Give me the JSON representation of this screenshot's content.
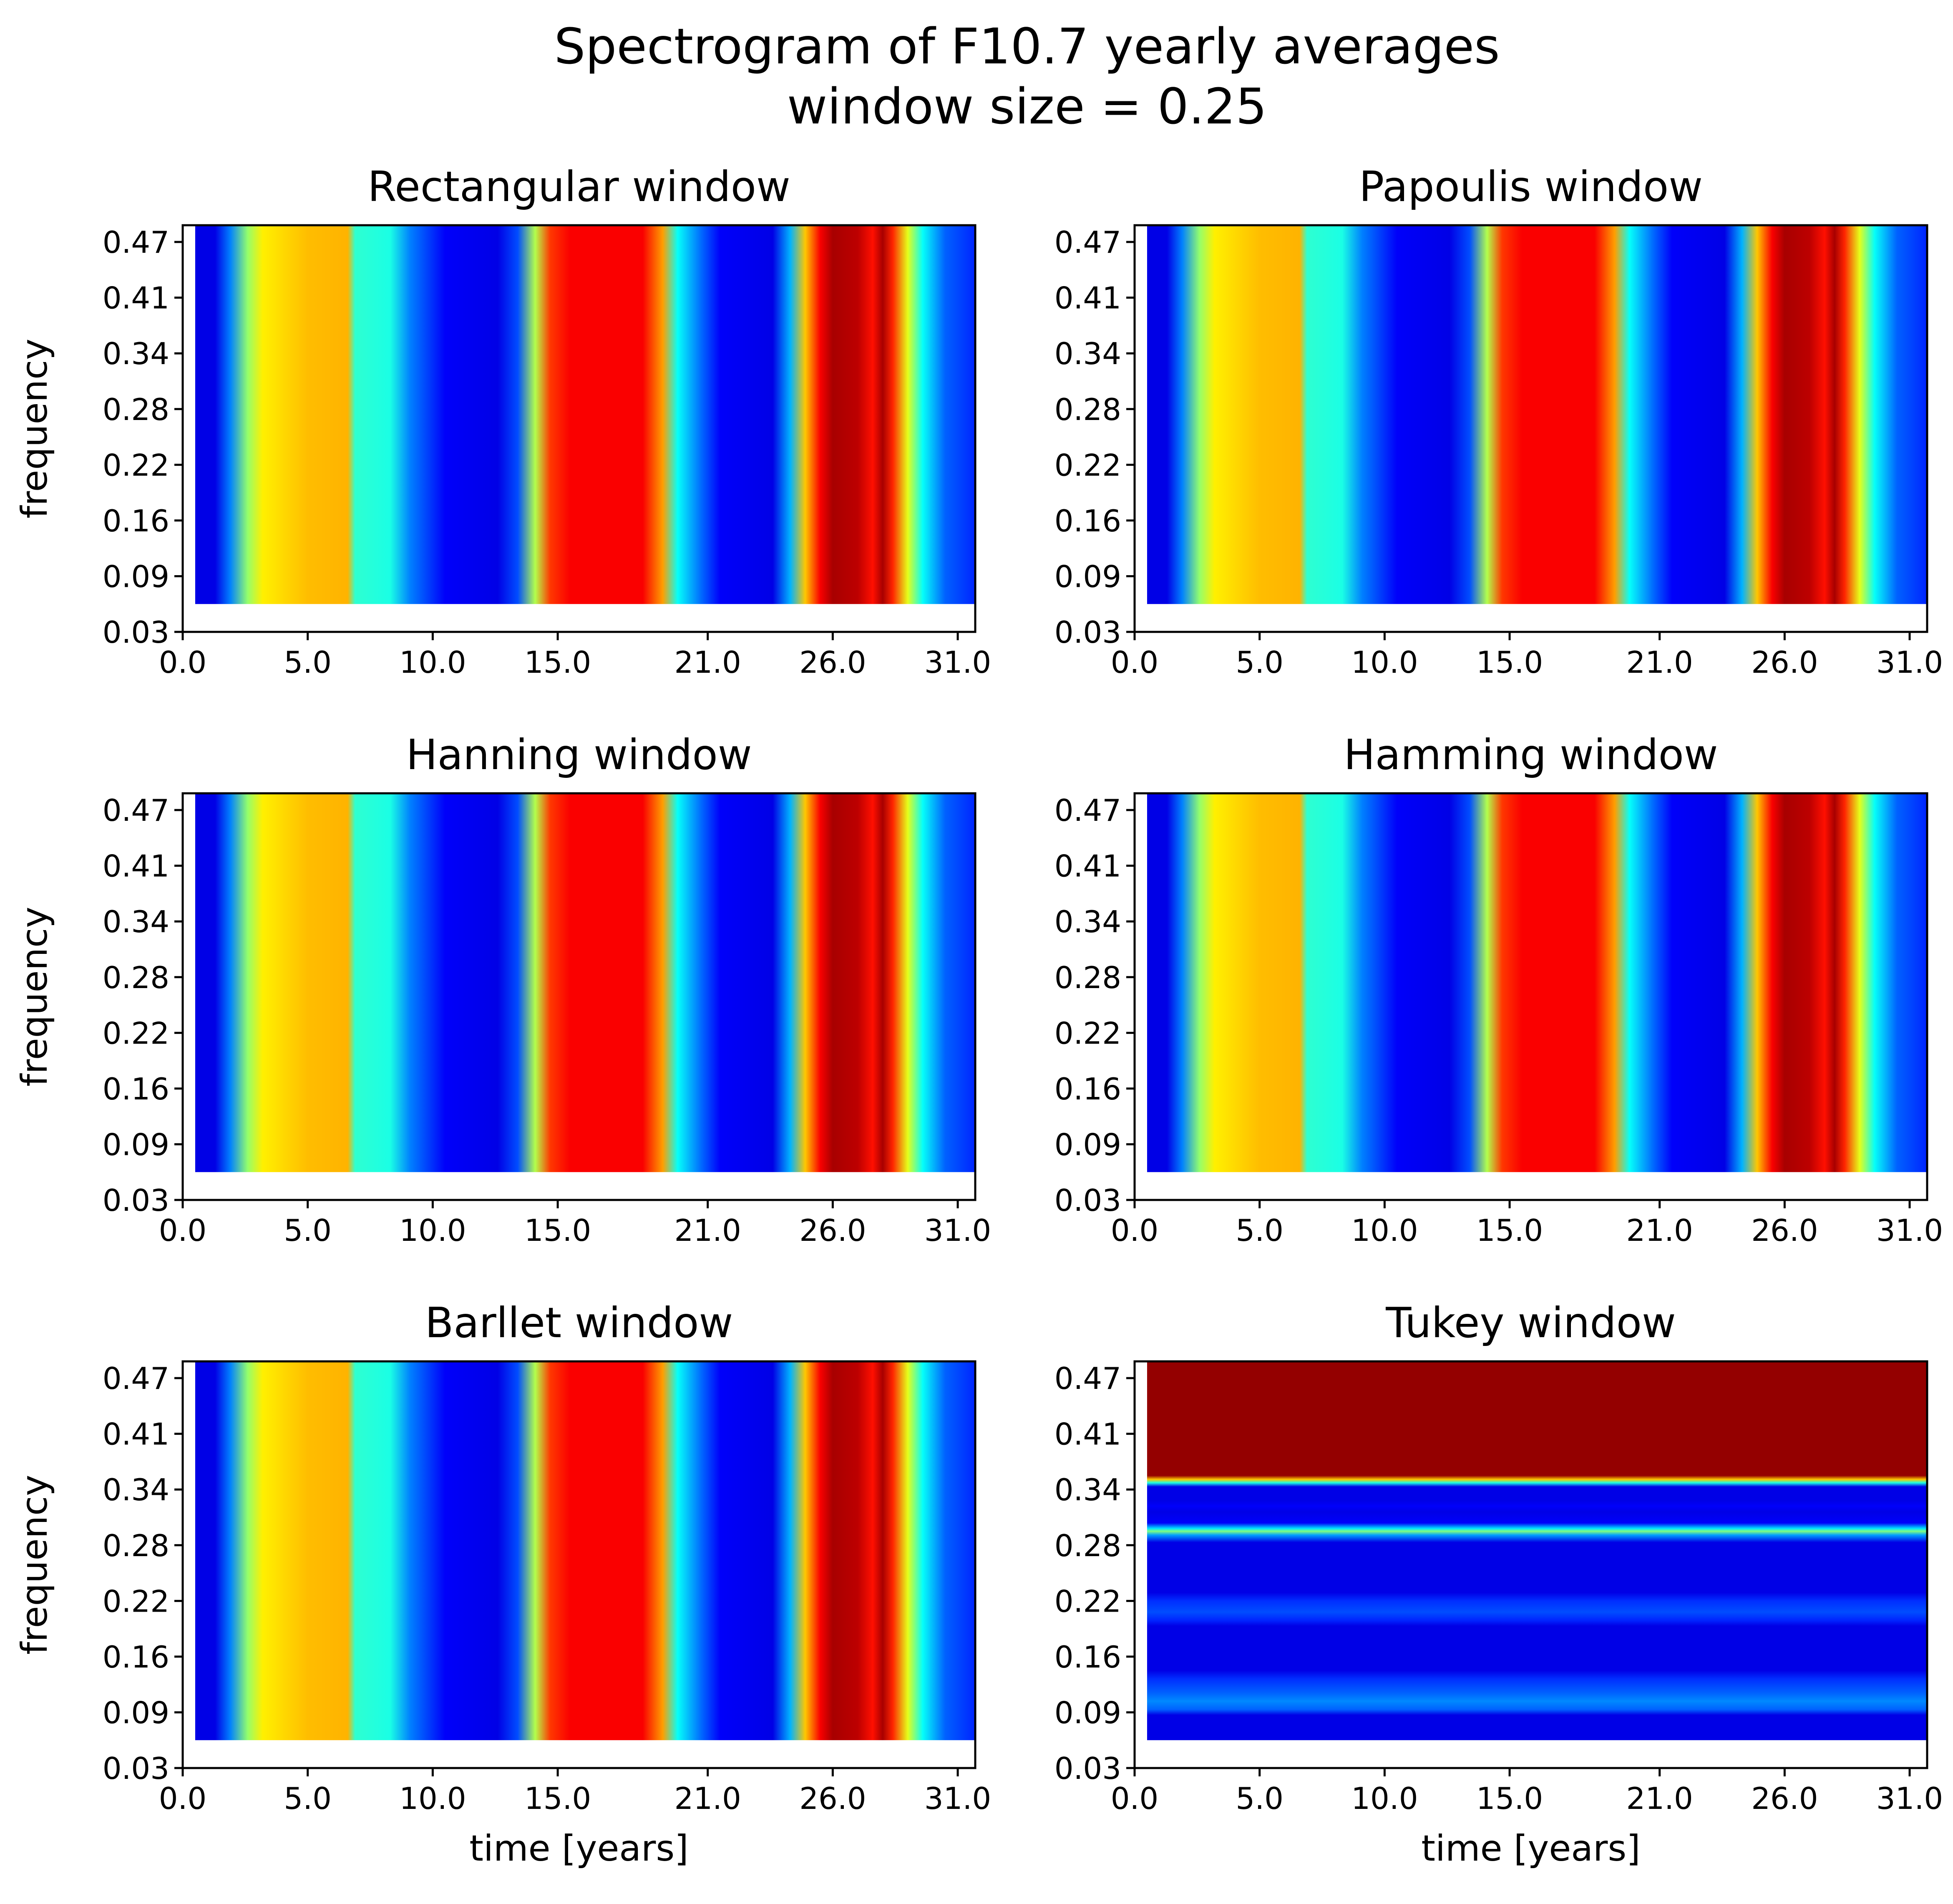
{
  "chart_data": {
    "type": "heatmap",
    "title_lines": [
      "Spectrogram of F10.7 yearly averages",
      "window size = 0.25"
    ],
    "colormap": "jet",
    "x_ticks": [
      "0.0",
      "5.0",
      "10.0",
      "15.0",
      "21.0",
      "26.0",
      "31.0"
    ],
    "y_ticks": [
      "0.03",
      "0.09",
      "0.16",
      "0.22",
      "0.28",
      "0.34",
      "0.41",
      "0.47"
    ],
    "xlim": [
      0,
      31.7
    ],
    "ylim": [
      0,
      7.3
    ],
    "xlabel": "time [years]",
    "ylabel": "frequency",
    "panels": [
      {
        "title": "Rectangular window",
        "orientation": "time",
        "profile": [
          {
            "x": 0.5,
            "v": 0.1
          },
          {
            "x": 1.3,
            "v": 0.1
          },
          {
            "x": 1.9,
            "v": 0.25
          },
          {
            "x": 2.6,
            "v": 0.52
          },
          {
            "x": 3.2,
            "v": 0.64
          },
          {
            "x": 5.0,
            "v": 0.69
          },
          {
            "x": 6.6,
            "v": 0.7
          },
          {
            "x": 6.9,
            "v": 0.42
          },
          {
            "x": 8.3,
            "v": 0.4
          },
          {
            "x": 9.1,
            "v": 0.25
          },
          {
            "x": 10.5,
            "v": 0.12
          },
          {
            "x": 12.6,
            "v": 0.1
          },
          {
            "x": 13.4,
            "v": 0.2
          },
          {
            "x": 14.1,
            "v": 0.55
          },
          {
            "x": 14.7,
            "v": 0.82
          },
          {
            "x": 15.5,
            "v": 0.88
          },
          {
            "x": 18.4,
            "v": 0.88
          },
          {
            "x": 19.2,
            "v": 0.72
          },
          {
            "x": 19.8,
            "v": 0.38
          },
          {
            "x": 20.8,
            "v": 0.22
          },
          {
            "x": 21.5,
            "v": 0.12
          },
          {
            "x": 23.6,
            "v": 0.1
          },
          {
            "x": 24.3,
            "v": 0.3
          },
          {
            "x": 24.9,
            "v": 0.68
          },
          {
            "x": 25.5,
            "v": 0.88
          },
          {
            "x": 26.0,
            "v": 0.96
          },
          {
            "x": 27.0,
            "v": 0.94
          },
          {
            "x": 27.6,
            "v": 0.86
          },
          {
            "x": 28.0,
            "v": 0.96
          },
          {
            "x": 28.4,
            "v": 0.84
          },
          {
            "x": 29.0,
            "v": 0.6
          },
          {
            "x": 29.6,
            "v": 0.38
          },
          {
            "x": 30.5,
            "v": 0.22
          },
          {
            "x": 31.7,
            "v": 0.16
          }
        ]
      },
      {
        "title": "Papoulis window",
        "orientation": "time",
        "profile": [
          {
            "x": 0.5,
            "v": 0.1
          },
          {
            "x": 1.3,
            "v": 0.1
          },
          {
            "x": 1.9,
            "v": 0.25
          },
          {
            "x": 2.6,
            "v": 0.52
          },
          {
            "x": 3.2,
            "v": 0.64
          },
          {
            "x": 5.0,
            "v": 0.69
          },
          {
            "x": 6.6,
            "v": 0.7
          },
          {
            "x": 6.9,
            "v": 0.42
          },
          {
            "x": 8.3,
            "v": 0.4
          },
          {
            "x": 9.1,
            "v": 0.25
          },
          {
            "x": 10.5,
            "v": 0.12
          },
          {
            "x": 12.6,
            "v": 0.1
          },
          {
            "x": 13.4,
            "v": 0.2
          },
          {
            "x": 14.1,
            "v": 0.55
          },
          {
            "x": 14.7,
            "v": 0.82
          },
          {
            "x": 15.5,
            "v": 0.88
          },
          {
            "x": 18.4,
            "v": 0.88
          },
          {
            "x": 19.2,
            "v": 0.72
          },
          {
            "x": 19.8,
            "v": 0.38
          },
          {
            "x": 20.8,
            "v": 0.22
          },
          {
            "x": 21.5,
            "v": 0.12
          },
          {
            "x": 23.6,
            "v": 0.1
          },
          {
            "x": 24.3,
            "v": 0.3
          },
          {
            "x": 24.9,
            "v": 0.68
          },
          {
            "x": 25.5,
            "v": 0.88
          },
          {
            "x": 26.0,
            "v": 0.96
          },
          {
            "x": 27.0,
            "v": 0.94
          },
          {
            "x": 27.6,
            "v": 0.86
          },
          {
            "x": 28.0,
            "v": 0.96
          },
          {
            "x": 28.4,
            "v": 0.84
          },
          {
            "x": 29.0,
            "v": 0.6
          },
          {
            "x": 29.6,
            "v": 0.38
          },
          {
            "x": 30.5,
            "v": 0.22
          },
          {
            "x": 31.7,
            "v": 0.16
          }
        ]
      },
      {
        "title": "Hanning window",
        "orientation": "time",
        "profile": [
          {
            "x": 0.5,
            "v": 0.1
          },
          {
            "x": 1.3,
            "v": 0.1
          },
          {
            "x": 1.9,
            "v": 0.25
          },
          {
            "x": 2.6,
            "v": 0.52
          },
          {
            "x": 3.2,
            "v": 0.64
          },
          {
            "x": 5.0,
            "v": 0.69
          },
          {
            "x": 6.6,
            "v": 0.7
          },
          {
            "x": 6.9,
            "v": 0.42
          },
          {
            "x": 8.3,
            "v": 0.4
          },
          {
            "x": 9.1,
            "v": 0.25
          },
          {
            "x": 10.5,
            "v": 0.12
          },
          {
            "x": 12.6,
            "v": 0.1
          },
          {
            "x": 13.4,
            "v": 0.2
          },
          {
            "x": 14.1,
            "v": 0.55
          },
          {
            "x": 14.7,
            "v": 0.82
          },
          {
            "x": 15.5,
            "v": 0.88
          },
          {
            "x": 18.4,
            "v": 0.88
          },
          {
            "x": 19.2,
            "v": 0.72
          },
          {
            "x": 19.8,
            "v": 0.38
          },
          {
            "x": 20.8,
            "v": 0.22
          },
          {
            "x": 21.5,
            "v": 0.12
          },
          {
            "x": 23.6,
            "v": 0.1
          },
          {
            "x": 24.3,
            "v": 0.3
          },
          {
            "x": 24.9,
            "v": 0.68
          },
          {
            "x": 25.5,
            "v": 0.88
          },
          {
            "x": 26.0,
            "v": 0.96
          },
          {
            "x": 27.0,
            "v": 0.94
          },
          {
            "x": 27.6,
            "v": 0.86
          },
          {
            "x": 28.0,
            "v": 0.96
          },
          {
            "x": 28.4,
            "v": 0.84
          },
          {
            "x": 29.0,
            "v": 0.6
          },
          {
            "x": 29.6,
            "v": 0.38
          },
          {
            "x": 30.5,
            "v": 0.22
          },
          {
            "x": 31.7,
            "v": 0.16
          }
        ]
      },
      {
        "title": "Hamming window",
        "orientation": "time",
        "profile": [
          {
            "x": 0.5,
            "v": 0.1
          },
          {
            "x": 1.3,
            "v": 0.1
          },
          {
            "x": 1.9,
            "v": 0.25
          },
          {
            "x": 2.6,
            "v": 0.52
          },
          {
            "x": 3.2,
            "v": 0.64
          },
          {
            "x": 5.0,
            "v": 0.69
          },
          {
            "x": 6.6,
            "v": 0.7
          },
          {
            "x": 6.9,
            "v": 0.42
          },
          {
            "x": 8.3,
            "v": 0.4
          },
          {
            "x": 9.1,
            "v": 0.25
          },
          {
            "x": 10.5,
            "v": 0.12
          },
          {
            "x": 12.6,
            "v": 0.1
          },
          {
            "x": 13.4,
            "v": 0.2
          },
          {
            "x": 14.1,
            "v": 0.55
          },
          {
            "x": 14.7,
            "v": 0.82
          },
          {
            "x": 15.5,
            "v": 0.88
          },
          {
            "x": 18.4,
            "v": 0.88
          },
          {
            "x": 19.2,
            "v": 0.72
          },
          {
            "x": 19.8,
            "v": 0.38
          },
          {
            "x": 20.8,
            "v": 0.22
          },
          {
            "x": 21.5,
            "v": 0.12
          },
          {
            "x": 23.6,
            "v": 0.1
          },
          {
            "x": 24.3,
            "v": 0.3
          },
          {
            "x": 24.9,
            "v": 0.68
          },
          {
            "x": 25.5,
            "v": 0.88
          },
          {
            "x": 26.0,
            "v": 0.96
          },
          {
            "x": 27.0,
            "v": 0.94
          },
          {
            "x": 27.6,
            "v": 0.86
          },
          {
            "x": 28.0,
            "v": 0.96
          },
          {
            "x": 28.4,
            "v": 0.84
          },
          {
            "x": 29.0,
            "v": 0.6
          },
          {
            "x": 29.6,
            "v": 0.38
          },
          {
            "x": 30.5,
            "v": 0.22
          },
          {
            "x": 31.7,
            "v": 0.16
          }
        ]
      },
      {
        "title": "Barllet window",
        "orientation": "time",
        "profile": [
          {
            "x": 0.5,
            "v": 0.1
          },
          {
            "x": 1.3,
            "v": 0.1
          },
          {
            "x": 1.9,
            "v": 0.25
          },
          {
            "x": 2.6,
            "v": 0.52
          },
          {
            "x": 3.2,
            "v": 0.64
          },
          {
            "x": 5.0,
            "v": 0.69
          },
          {
            "x": 6.6,
            "v": 0.7
          },
          {
            "x": 6.9,
            "v": 0.42
          },
          {
            "x": 8.3,
            "v": 0.4
          },
          {
            "x": 9.1,
            "v": 0.25
          },
          {
            "x": 10.5,
            "v": 0.12
          },
          {
            "x": 12.6,
            "v": 0.1
          },
          {
            "x": 13.4,
            "v": 0.2
          },
          {
            "x": 14.1,
            "v": 0.55
          },
          {
            "x": 14.7,
            "v": 0.82
          },
          {
            "x": 15.5,
            "v": 0.88
          },
          {
            "x": 18.4,
            "v": 0.88
          },
          {
            "x": 19.2,
            "v": 0.72
          },
          {
            "x": 19.8,
            "v": 0.38
          },
          {
            "x": 20.8,
            "v": 0.22
          },
          {
            "x": 21.5,
            "v": 0.12
          },
          {
            "x": 23.6,
            "v": 0.1
          },
          {
            "x": 24.3,
            "v": 0.3
          },
          {
            "x": 24.9,
            "v": 0.68
          },
          {
            "x": 25.5,
            "v": 0.88
          },
          {
            "x": 26.0,
            "v": 0.96
          },
          {
            "x": 27.0,
            "v": 0.94
          },
          {
            "x": 27.6,
            "v": 0.86
          },
          {
            "x": 28.0,
            "v": 0.96
          },
          {
            "x": 28.4,
            "v": 0.84
          },
          {
            "x": 29.0,
            "v": 0.6
          },
          {
            "x": 29.6,
            "v": 0.38
          },
          {
            "x": 30.5,
            "v": 0.22
          },
          {
            "x": 31.7,
            "v": 0.16
          }
        ]
      },
      {
        "title": "Tukey window",
        "orientation": "frequency",
        "profile": [
          {
            "y": 0.5,
            "v": 0.1
          },
          {
            "y": 0.95,
            "v": 0.1
          },
          {
            "y": 1.05,
            "v": 0.22
          },
          {
            "y": 1.2,
            "v": 0.26
          },
          {
            "y": 1.35,
            "v": 0.22
          },
          {
            "y": 1.6,
            "v": 0.17
          },
          {
            "y": 1.75,
            "v": 0.1
          },
          {
            "y": 2.55,
            "v": 0.1
          },
          {
            "y": 2.65,
            "v": 0.16
          },
          {
            "y": 2.8,
            "v": 0.2
          },
          {
            "y": 3.0,
            "v": 0.17
          },
          {
            "y": 3.15,
            "v": 0.1
          },
          {
            "y": 4.05,
            "v": 0.1
          },
          {
            "y": 4.18,
            "v": 0.28
          },
          {
            "y": 4.25,
            "v": 0.5
          },
          {
            "y": 4.3,
            "v": 0.35
          },
          {
            "y": 4.4,
            "v": 0.12
          },
          {
            "y": 4.6,
            "v": 0.1
          },
          {
            "y": 4.7,
            "v": 0.12
          },
          {
            "y": 4.8,
            "v": 0.1
          },
          {
            "y": 5.05,
            "v": 0.1
          },
          {
            "y": 5.12,
            "v": 0.4
          },
          {
            "y": 5.18,
            "v": 0.68
          },
          {
            "y": 5.25,
            "v": 0.98
          },
          {
            "y": 7.3,
            "v": 0.98
          }
        ]
      }
    ]
  }
}
